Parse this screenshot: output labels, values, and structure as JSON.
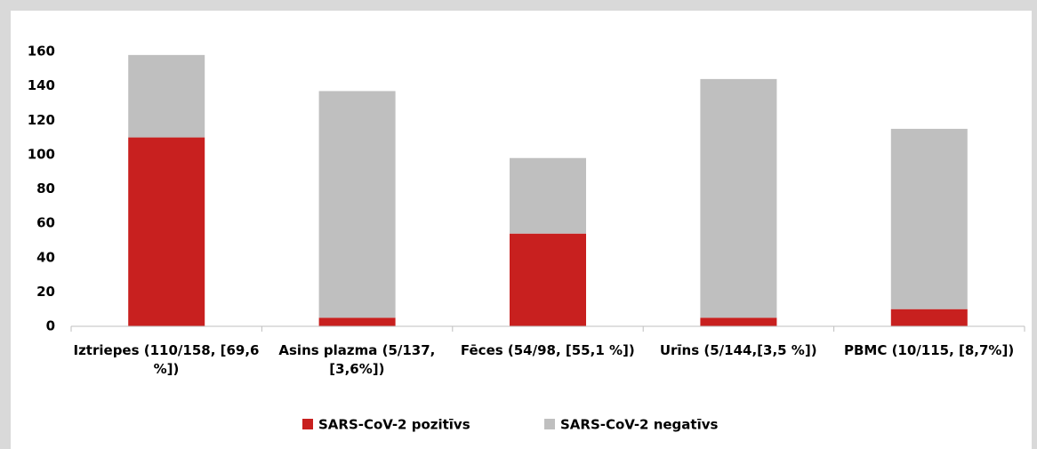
{
  "chart_data": {
    "type": "stacked_bar",
    "categories": [
      "Iztriepes (110/158, [69,6 %])",
      "Asins plazma (5/137, [3,6%])",
      "Fēces (54/98, [55,1 %])",
      "Urīns (5/144,[3,5 %])",
      "PBMC (10/115, [8,7%])"
    ],
    "series": [
      {
        "name": "SARS-CoV-2 pozitīvs",
        "color": "#c8201f",
        "values": [
          110,
          5,
          54,
          5,
          10
        ]
      },
      {
        "name": "SARS-CoV-2 negatīvs",
        "color": "#bfbfbf",
        "values": [
          48,
          132,
          44,
          139,
          105
        ]
      }
    ],
    "ylim": [
      0,
      160
    ],
    "yticks": [
      0,
      20,
      40,
      60,
      80,
      100,
      120,
      140,
      160
    ],
    "grid": false,
    "legend": "bottom"
  }
}
